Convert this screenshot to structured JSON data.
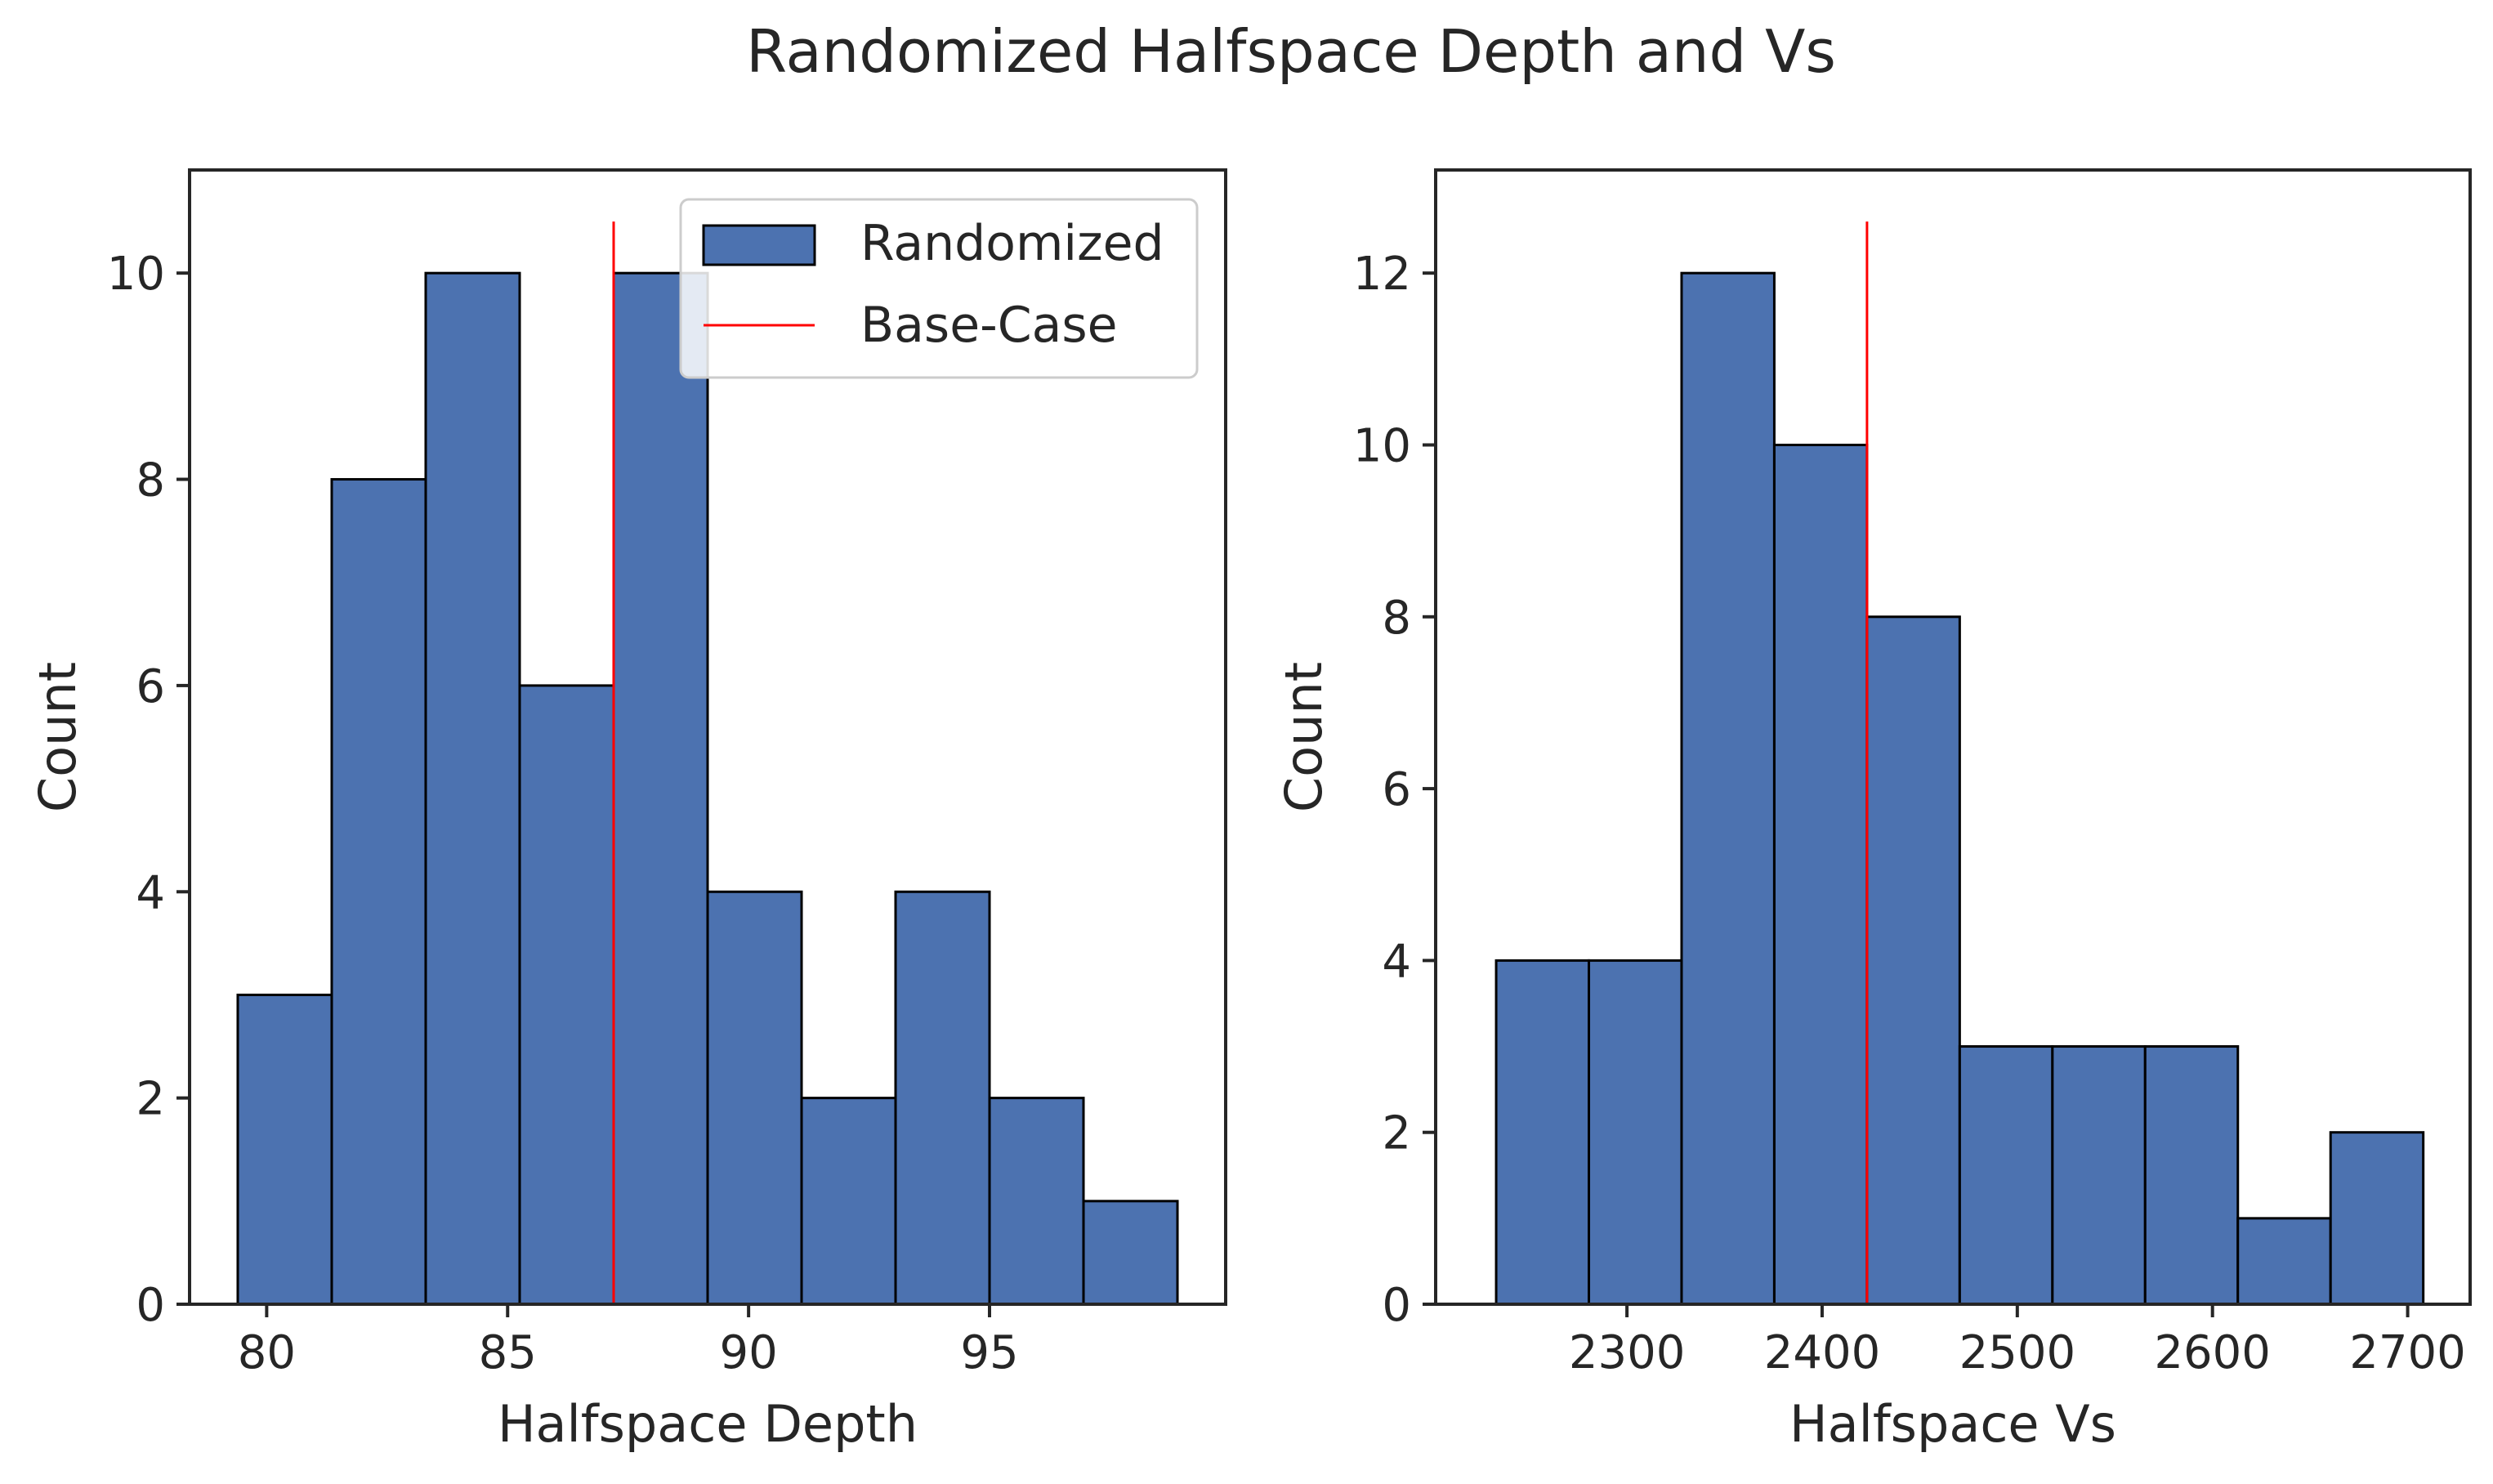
{
  "figure": {
    "title": "Randomized Halfspace Depth and Vs"
  },
  "chart_data": [
    {
      "type": "bar",
      "subtype": "histogram",
      "title": "",
      "xlabel": "Halfspace Depth",
      "ylabel": "Count",
      "xlim": [
        78.4,
        99.9
      ],
      "ylim": [
        0,
        11
      ],
      "xticks": [
        80,
        85,
        90,
        95
      ],
      "yticks": [
        0,
        2,
        4,
        6,
        8,
        10
      ],
      "bin_edges": [
        79.4,
        81.35,
        83.3,
        85.25,
        87.2,
        89.15,
        91.1,
        93.05,
        95.0,
        96.95,
        98.9
      ],
      "values": [
        3,
        8,
        10,
        6,
        10,
        4,
        2,
        4,
        2,
        1
      ],
      "bar_color": "#4c72b0",
      "base_case": {
        "x": 87.2,
        "y_top": 10.5,
        "color": "#ff0000"
      },
      "legend": {
        "position": "top-right",
        "entries": [
          {
            "label": "Randomized",
            "kind": "patch",
            "color": "#4c72b0"
          },
          {
            "label": "Base-Case",
            "kind": "line",
            "color": "#ff0000"
          }
        ]
      },
      "grid": false
    },
    {
      "type": "bar",
      "subtype": "histogram",
      "title": "",
      "xlabel": "Halfspace Vs",
      "ylabel": "Count",
      "xlim": [
        2202,
        2732
      ],
      "ylim": [
        0,
        13.2
      ],
      "xticks": [
        2300,
        2400,
        2500,
        2600,
        2700
      ],
      "yticks": [
        0,
        2,
        4,
        6,
        8,
        10,
        12
      ],
      "bin_edges": [
        2233,
        2280.5,
        2328,
        2375.5,
        2423,
        2470.5,
        2518,
        2565.5,
        2613,
        2660.5,
        2708
      ],
      "values": [
        4,
        4,
        12,
        10,
        8,
        3,
        3,
        3,
        1,
        2
      ],
      "bar_color": "#4c72b0",
      "base_case": {
        "x": 2423,
        "y_top": 12.6,
        "color": "#ff0000"
      },
      "grid": false
    }
  ]
}
